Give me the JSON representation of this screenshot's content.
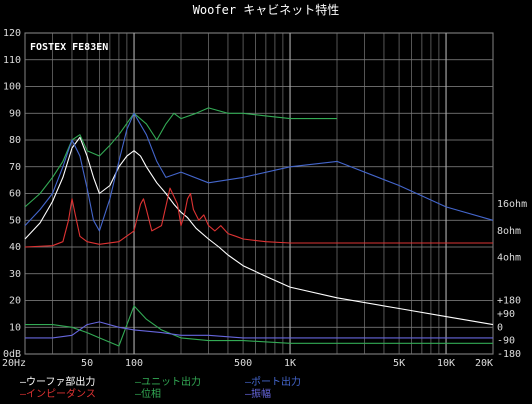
{
  "chart_data": {
    "type": "line",
    "title": "Woofer キャビネット特性",
    "annotation": "FOSTEX FE83EN",
    "x_scale": "log",
    "xlim": [
      20,
      20000
    ],
    "ylim": [
      0,
      120
    ],
    "grid": true,
    "legend_placement": "bottom",
    "x_ticks": [
      {
        "value": 20,
        "label": "20Hz"
      },
      {
        "value": 50,
        "label": "50"
      },
      {
        "value": 100,
        "label": "100"
      },
      {
        "value": 500,
        "label": "500"
      },
      {
        "value": 1000,
        "label": "1K"
      },
      {
        "value": 5000,
        "label": "5K"
      },
      {
        "value": 10000,
        "label": "10K"
      },
      {
        "value": 20000,
        "label": "20K"
      }
    ],
    "y_ticks": [
      {
        "value": 0,
        "label": "0dB"
      },
      {
        "value": 10,
        "label": "10"
      },
      {
        "value": 20,
        "label": "20"
      },
      {
        "value": 30,
        "label": "30"
      },
      {
        "value": 40,
        "label": "40"
      },
      {
        "value": 50,
        "label": "50"
      },
      {
        "value": 60,
        "label": "60"
      },
      {
        "value": 70,
        "label": "70"
      },
      {
        "value": 80,
        "label": "80"
      },
      {
        "value": 90,
        "label": "90"
      },
      {
        "value": 100,
        "label": "100"
      },
      {
        "value": 110,
        "label": "110"
      },
      {
        "value": 120,
        "label": "120"
      }
    ],
    "right_ticks": [
      {
        "value": 56,
        "label": "16ohm"
      },
      {
        "value": 46,
        "label": "8ohm"
      },
      {
        "value": 36,
        "label": "4ohm"
      },
      {
        "value": 20,
        "label": "+180"
      },
      {
        "value": 15,
        "label": "+90"
      },
      {
        "value": 10,
        "label": "0"
      },
      {
        "value": 5,
        "label": "-90"
      },
      {
        "value": 0,
        "label": "-180"
      }
    ],
    "series": [
      {
        "name": "ウーファ部出力",
        "color": "#ffffff",
        "x": [
          20,
          25,
          30,
          35,
          40,
          45,
          50,
          55,
          60,
          70,
          80,
          90,
          100,
          110,
          120,
          140,
          160,
          180,
          200,
          220,
          250,
          300,
          350,
          400,
          500,
          700,
          1000,
          2000,
          5000,
          10000,
          20000
        ],
        "y": [
          43,
          49,
          57,
          66,
          77,
          81,
          74,
          66,
          60,
          63,
          70,
          74,
          76,
          74,
          70,
          64,
          60,
          56,
          53,
          51,
          47,
          43,
          40,
          37,
          33,
          29,
          25,
          21,
          17,
          14,
          11
        ]
      },
      {
        "name": "ユニット出力",
        "color": "#33aa55",
        "x": [
          20,
          25,
          30,
          35,
          40,
          45,
          50,
          60,
          70,
          80,
          100,
          120,
          140,
          160,
          180,
          200,
          250,
          300,
          400,
          500,
          700,
          1000,
          2000
        ],
        "y": [
          55,
          60,
          66,
          72,
          80,
          82,
          76,
          74,
          78,
          82,
          90,
          86,
          80,
          86,
          90,
          88,
          90,
          92,
          90,
          90,
          89,
          88,
          88
        ]
      },
      {
        "name": "ポート出力",
        "color": "#4466cc",
        "x": [
          20,
          25,
          30,
          35,
          40,
          45,
          50,
          55,
          60,
          70,
          80,
          90,
          100,
          120,
          140,
          160,
          200,
          300,
          500,
          1000,
          2000,
          5000,
          10000,
          20000
        ],
        "y": [
          48,
          54,
          60,
          70,
          80,
          74,
          62,
          50,
          46,
          58,
          72,
          84,
          90,
          82,
          72,
          66,
          68,
          64,
          66,
          70,
          72,
          63,
          55,
          50
        ]
      },
      {
        "name": "インピーダンス",
        "color": "#dd3333",
        "x": [
          20,
          30,
          35,
          38,
          40,
          42,
          45,
          50,
          60,
          80,
          100,
          110,
          115,
          120,
          130,
          150,
          170,
          190,
          200,
          210,
          220,
          230,
          240,
          260,
          280,
          300,
          330,
          360,
          400,
          450,
          500,
          700,
          1000,
          2000,
          5000,
          10000,
          20000
        ],
        "y": [
          40,
          40.5,
          42,
          50,
          58,
          52,
          44,
          42,
          41,
          42,
          46,
          56,
          58,
          54,
          46,
          48,
          62,
          56,
          48,
          52,
          58,
          60,
          54,
          50,
          52,
          48,
          46,
          48,
          45,
          44,
          43,
          42,
          41.5,
          41.5,
          41.5,
          41.5,
          41.5
        ]
      },
      {
        "name": "位相",
        "color": "#33aa55",
        "x": [
          20,
          30,
          40,
          50,
          60,
          80,
          100,
          120,
          150,
          200,
          300,
          500,
          1000,
          2000,
          5000,
          10000,
          20000
        ],
        "y": [
          11,
          11,
          10,
          8,
          6,
          3,
          18,
          13,
          9,
          6,
          5,
          5,
          4,
          4,
          4,
          4,
          4
        ]
      },
      {
        "name": "振幅",
        "color": "#6666dd",
        "x": [
          20,
          30,
          40,
          50,
          60,
          80,
          100,
          150,
          200,
          300,
          500,
          1000,
          2000,
          5000,
          10000,
          20000
        ],
        "y": [
          6,
          6,
          7,
          11,
          12,
          10,
          9,
          8,
          7,
          7,
          6,
          6,
          6,
          6,
          6,
          6
        ]
      }
    ]
  }
}
